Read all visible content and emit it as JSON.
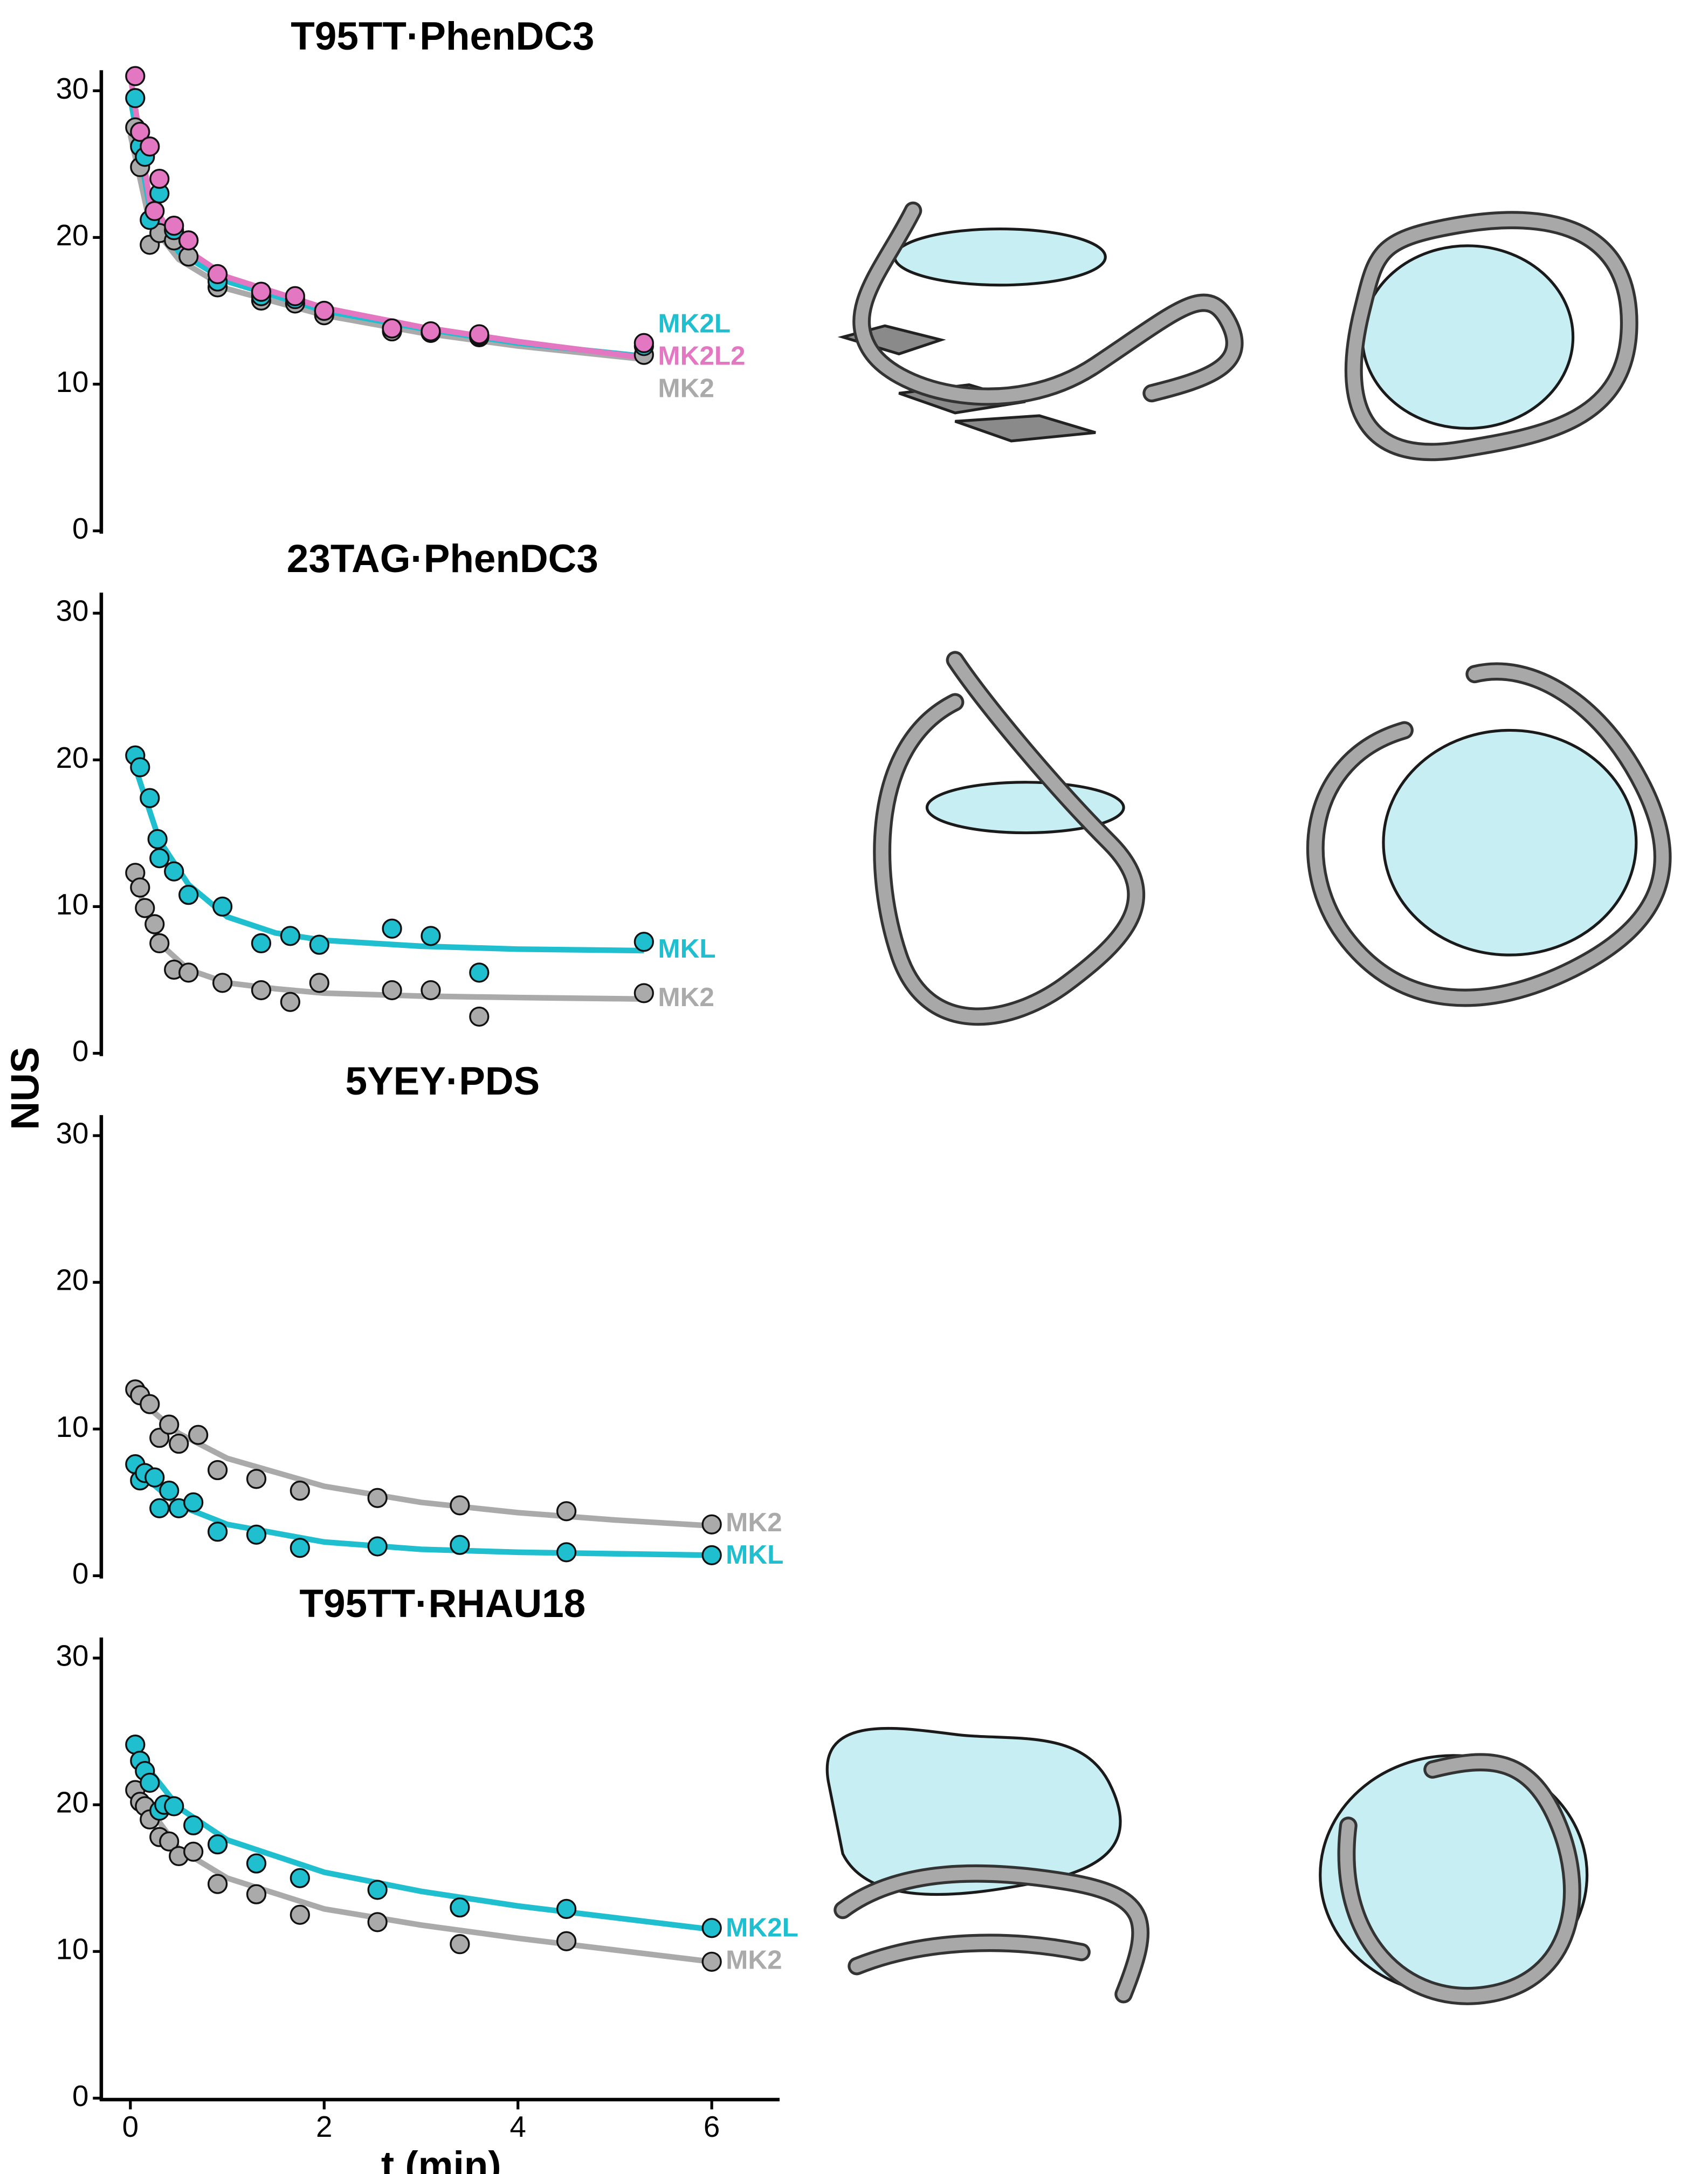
{
  "y_label": "NUS",
  "chart_data": [
    {
      "type": "scatter",
      "title": "T95TT·PhenDC3",
      "xlim": [
        -0.3,
        6.7
      ],
      "ylim": [
        0,
        31.4
      ],
      "yticks": [
        0,
        10,
        20,
        30
      ],
      "series": [
        {
          "name": "MK2",
          "color": "#aaaaaa",
          "x": [
            0.05,
            0.1,
            0.2,
            0.3,
            0.45,
            0.6,
            0.9,
            1.35,
            1.7,
            2.0,
            2.7,
            3.1,
            3.6,
            5.3
          ],
          "values": [
            27.5,
            24.8,
            19.5,
            20.3,
            19.8,
            18.7,
            16.6,
            15.7,
            15.5,
            14.7,
            13.6,
            13.5,
            13.2,
            12.0
          ],
          "fit": {
            "x": [
              0,
              0.2,
              0.5,
              1,
              2,
              3,
              4,
              5.3
            ],
            "values": [
              27,
              21,
              18.5,
              16.5,
              14.7,
              13.5,
              12.6,
              11.7
            ]
          }
        },
        {
          "name": "MK2L",
          "color": "#1fbfcf",
          "x": [
            0.05,
            0.1,
            0.15,
            0.2,
            0.3,
            0.45,
            0.6,
            0.9,
            1.35,
            1.7,
            2.0,
            2.7,
            3.1,
            3.6,
            5.3
          ],
          "values": [
            29.5,
            26.2,
            25.5,
            21.2,
            23.0,
            20.5,
            19.8,
            17.0,
            16.0,
            15.8,
            15.0,
            13.8,
            13.5,
            13.3,
            12.6
          ],
          "fit": {
            "x": [
              0,
              0.2,
              0.5,
              1,
              2,
              3,
              4,
              5.3
            ],
            "values": [
              29.5,
              22,
              19,
              17,
              15,
              13.8,
              12.8,
              11.9
            ]
          }
        },
        {
          "name": "MK2L2",
          "color": "#e377c2",
          "x": [
            0.05,
            0.1,
            0.2,
            0.25,
            0.3,
            0.45,
            0.6,
            0.9,
            1.35,
            1.7,
            2.0,
            2.7,
            3.1,
            3.6,
            5.3
          ],
          "values": [
            31.0,
            27.2,
            26.2,
            21.8,
            24.0,
            20.8,
            19.8,
            17.5,
            16.3,
            16.0,
            15.0,
            13.8,
            13.6,
            13.4,
            12.8
          ],
          "fit": {
            "x": [
              0,
              0.2,
              0.5,
              1,
              2,
              3,
              4,
              5.3
            ],
            "values": [
              31,
              22.5,
              19.5,
              17.3,
              15.2,
              13.9,
              12.9,
              11.8
            ]
          }
        }
      ]
    },
    {
      "type": "scatter",
      "title": "23TAG·PhenDC3",
      "xlim": [
        -0.3,
        6.7
      ],
      "ylim": [
        0,
        31.4
      ],
      "yticks": [
        0,
        10,
        20,
        30
      ],
      "series": [
        {
          "name": "MK2",
          "color": "#aaaaaa",
          "x": [
            0.05,
            0.1,
            0.15,
            0.25,
            0.3,
            0.45,
            0.6,
            0.95,
            1.35,
            1.65,
            1.95,
            2.7,
            3.1,
            3.6,
            5.3
          ],
          "values": [
            12.3,
            11.3,
            9.9,
            8.8,
            7.5,
            5.7,
            5.5,
            4.8,
            4.3,
            3.5,
            4.8,
            4.3,
            4.3,
            2.5,
            4.1
          ],
          "fit": {
            "x": [
              0,
              0.3,
              0.6,
              1,
              1.5,
              2,
              3,
              4,
              5.3
            ],
            "values": [
              12.5,
              7.5,
              5.7,
              4.8,
              4.4,
              4.1,
              3.9,
              3.8,
              3.7
            ]
          }
        },
        {
          "name": "MKL",
          "color": "#1fbfcf",
          "x": [
            0.05,
            0.1,
            0.2,
            0.28,
            0.3,
            0.45,
            0.6,
            0.95,
            1.35,
            1.65,
            1.95,
            2.7,
            3.1,
            3.6,
            5.3
          ],
          "values": [
            20.3,
            19.5,
            17.4,
            14.6,
            13.3,
            12.4,
            10.8,
            10.0,
            7.5,
            8.0,
            7.4,
            8.5,
            8.0,
            5.5,
            7.6
          ],
          "fit": {
            "x": [
              0,
              0.3,
              0.6,
              1,
              1.5,
              2,
              3,
              4,
              5.3
            ],
            "values": [
              20.5,
              14.5,
              11.5,
              9.3,
              8.2,
              7.7,
              7.3,
              7.1,
              7.0
            ]
          }
        }
      ]
    },
    {
      "type": "scatter",
      "title": "5YEY·PDS",
      "xlim": [
        -0.3,
        6.7
      ],
      "ylim": [
        0,
        31.4
      ],
      "yticks": [
        0,
        10,
        20,
        30
      ],
      "series": [
        {
          "name": "MK2",
          "color": "#aaaaaa",
          "x": [
            0.05,
            0.1,
            0.2,
            0.3,
            0.4,
            0.5,
            0.7,
            0.9,
            1.3,
            1.75,
            2.55,
            3.4,
            4.5,
            6.0
          ],
          "values": [
            12.7,
            12.3,
            11.7,
            9.4,
            10.3,
            9.0,
            9.6,
            7.2,
            6.6,
            5.8,
            5.3,
            4.8,
            4.4,
            3.5
          ],
          "fit": {
            "x": [
              0,
              0.5,
              1,
              2,
              3,
              4,
              5,
              6
            ],
            "values": [
              12.5,
              9.7,
              8.0,
              6.1,
              5.0,
              4.3,
              3.8,
              3.4
            ]
          }
        },
        {
          "name": "MKL",
          "color": "#1fbfcf",
          "x": [
            0.05,
            0.1,
            0.15,
            0.25,
            0.3,
            0.4,
            0.5,
            0.65,
            0.9,
            1.3,
            1.75,
            2.55,
            3.4,
            4.5,
            6.0
          ],
          "values": [
            7.6,
            6.5,
            7.0,
            6.7,
            4.6,
            5.8,
            4.6,
            5.0,
            3.0,
            2.8,
            1.9,
            2.0,
            2.1,
            1.6,
            1.4
          ],
          "fit": {
            "x": [
              0,
              0.5,
              1,
              2,
              3,
              4,
              5,
              6
            ],
            "values": [
              7.5,
              4.8,
              3.5,
              2.3,
              1.8,
              1.6,
              1.5,
              1.4
            ]
          }
        }
      ]
    },
    {
      "type": "scatter",
      "title": "T95TT·RHAU18",
      "xlim": [
        -0.3,
        6.7
      ],
      "ylim": [
        0,
        31.4
      ],
      "yticks": [
        0,
        10,
        20,
        30
      ],
      "xticks": [
        0,
        2,
        4,
        6
      ],
      "xlabel": "t (min)",
      "series": [
        {
          "name": "MK2",
          "color": "#aaaaaa",
          "x": [
            0.05,
            0.1,
            0.15,
            0.2,
            0.3,
            0.4,
            0.5,
            0.65,
            0.9,
            1.3,
            1.75,
            2.55,
            3.4,
            4.5,
            6.0
          ],
          "values": [
            21.0,
            20.2,
            19.9,
            19.0,
            17.8,
            17.5,
            16.5,
            16.8,
            14.6,
            13.9,
            12.5,
            12.0,
            10.5,
            10.7,
            9.3
          ],
          "fit": {
            "x": [
              0,
              0.5,
              1,
              2,
              3,
              4,
              5,
              6
            ],
            "values": [
              21.5,
              17,
              15,
              12.9,
              11.8,
              10.9,
              10.1,
              9.3
            ]
          }
        },
        {
          "name": "MK2L",
          "color": "#1fbfcf",
          "x": [
            0.05,
            0.1,
            0.15,
            0.2,
            0.3,
            0.35,
            0.45,
            0.65,
            0.9,
            1.3,
            1.75,
            2.55,
            3.4,
            4.5,
            6.0
          ],
          "values": [
            24.1,
            23.0,
            22.3,
            21.5,
            19.6,
            20.0,
            19.9,
            18.6,
            17.3,
            16.0,
            15.0,
            14.2,
            13.0,
            12.9,
            11.6
          ],
          "fit": {
            "x": [
              0,
              0.5,
              1,
              2,
              3,
              4,
              5,
              6
            ],
            "values": [
              24,
              19.8,
              17.6,
              15.4,
              14.1,
              13.1,
              12.3,
              11.5
            ]
          }
        }
      ]
    }
  ]
}
